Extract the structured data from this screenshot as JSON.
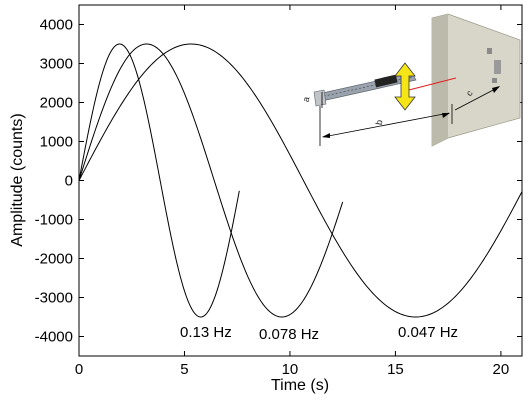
{
  "chart_data": {
    "type": "line",
    "title": "",
    "xlabel": "Time (s)",
    "ylabel": "Amplitude (counts)",
    "xlim": [
      0,
      21
    ],
    "ylim": [
      -4500,
      4500
    ],
    "xticks": [
      0,
      5,
      10,
      15,
      20
    ],
    "yticks": [
      4000,
      3000,
      2000,
      1000,
      0,
      -1000,
      -2000,
      -3000,
      -4000
    ],
    "grid": false,
    "series": [
      {
        "label": "0.13 Hz",
        "frequency_hz": 0.13,
        "amplitude": 3500,
        "t_end": 7.6
      },
      {
        "label": "0.078 Hz",
        "frequency_hz": 0.078,
        "amplitude": 3500,
        "t_end": 12.5
      },
      {
        "label": "0.047 Hz",
        "frequency_hz": 0.047,
        "amplitude": 3500,
        "t_end": 21.0
      }
    ],
    "inset": {
      "description": "setup schematic",
      "labels": [
        "a",
        "b",
        "c"
      ],
      "arrow_color": "#f5e416",
      "beam_color": "#e02020",
      "wall_color": "#d8d6c8"
    }
  }
}
